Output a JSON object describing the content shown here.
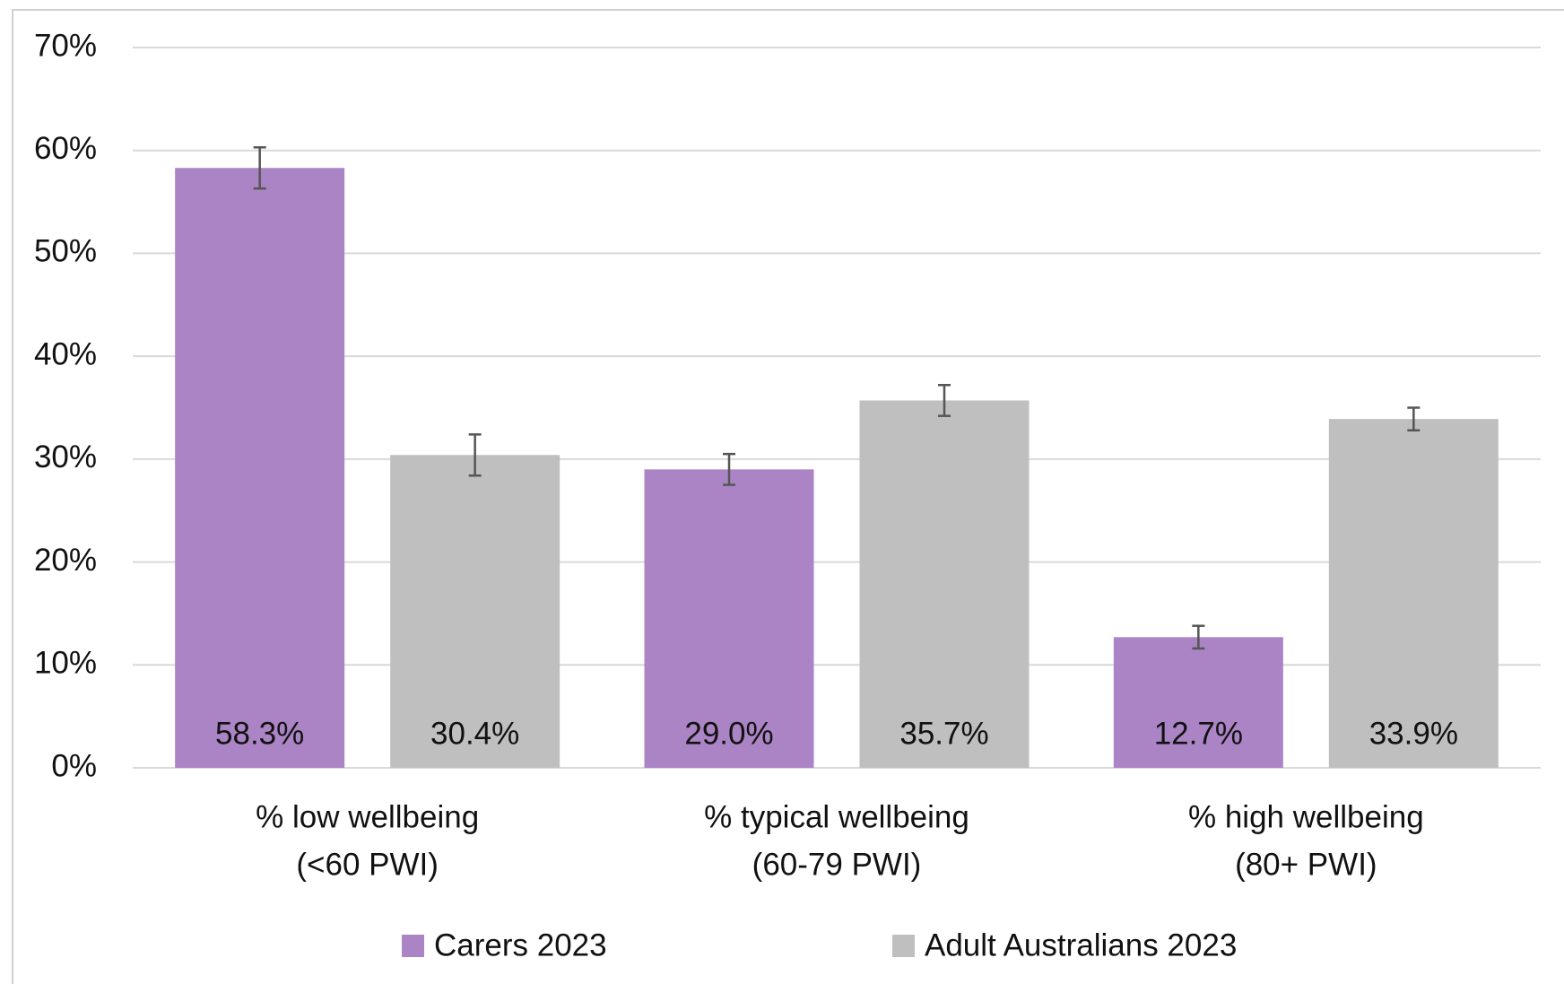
{
  "chart_data": {
    "type": "bar",
    "categories": [
      [
        "% low wellbeing",
        "(<60 PWI)"
      ],
      [
        "% typical wellbeing",
        "(60-79 PWI)"
      ],
      [
        "% high wellbeing",
        "(80+ PWI)"
      ]
    ],
    "series": [
      {
        "name": "Carers 2023",
        "color": "#ab84c5",
        "values": [
          58.3,
          29.0,
          12.7
        ],
        "value_labels": [
          "58.3%",
          "29.0%",
          "12.7%"
        ],
        "errors": [
          2.0,
          1.5,
          1.1
        ]
      },
      {
        "name": "Adult Australians 2023",
        "color": "#bfbfbf",
        "values": [
          30.4,
          35.7,
          33.9
        ],
        "value_labels": [
          "30.4%",
          "35.7%",
          "33.9%"
        ],
        "errors": [
          2.0,
          1.5,
          1.1
        ]
      }
    ],
    "ylim": [
      0,
      70
    ],
    "yticks": [
      {
        "value": 0,
        "label": "0%"
      },
      {
        "value": 10,
        "label": "10%"
      },
      {
        "value": 20,
        "label": "20%"
      },
      {
        "value": 30,
        "label": "30%"
      },
      {
        "value": 40,
        "label": "40%"
      },
      {
        "value": 50,
        "label": "50%"
      },
      {
        "value": 60,
        "label": "60%"
      },
      {
        "value": 70,
        "label": "70%"
      }
    ],
    "grid": true,
    "legend": "bottom"
  }
}
